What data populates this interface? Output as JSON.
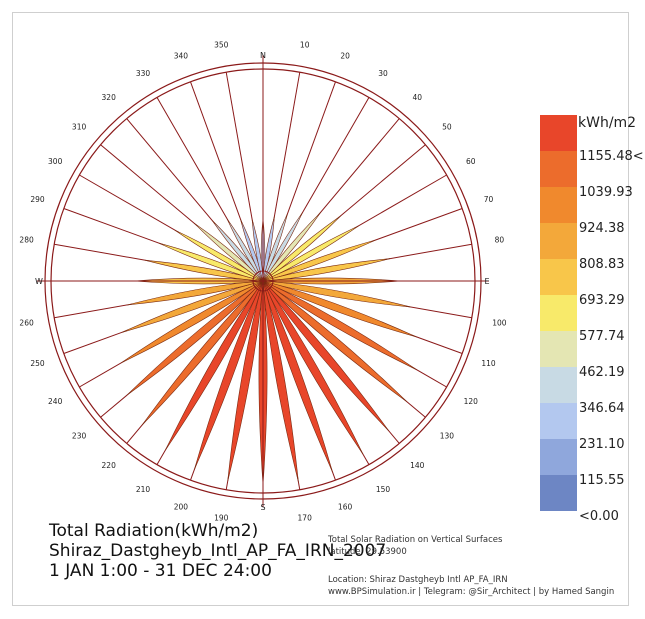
{
  "chart_data": {
    "type": "radial",
    "title": "Total Radiation(kWh/m2)",
    "location": "Shiraz_Dastgheyb_Intl_AP_FA_IRN_2007",
    "period": "1 JAN 1:00 - 31 DEC 24:00",
    "note_title": "Total Solar Radiation on Vertical Surfaces",
    "note_latitude": "latitude: 29.53900",
    "note_location": "Location: Shiraz Dastgheyb Intl AP_FA_IRN",
    "note_credits": "www.BPSimulation.ir | Telegram: @Sir_Architect | by Hamed Sangin",
    "cardinals": {
      "N": "N",
      "E": "E",
      "S": "S",
      "W": "W"
    },
    "angle_labels": [
      "10",
      "20",
      "30",
      "40",
      "50",
      "60",
      "70",
      "80",
      "100",
      "110",
      "120",
      "130",
      "140",
      "150",
      "160",
      "170",
      "190",
      "200",
      "210",
      "220",
      "230",
      "240",
      "250",
      "260",
      "280",
      "290",
      "300",
      "310",
      "320",
      "330",
      "340",
      "350"
    ],
    "directions_deg": [
      0,
      10,
      20,
      30,
      40,
      50,
      60,
      70,
      80,
      90,
      100,
      110,
      120,
      130,
      140,
      150,
      160,
      170,
      180,
      190,
      200,
      210,
      220,
      230,
      240,
      250,
      260,
      270,
      280,
      290,
      300,
      310,
      320,
      330,
      340,
      350
    ],
    "radiation_kwh_m2": [
      320,
      340,
      380,
      430,
      500,
      580,
      640,
      700,
      760,
      820,
      900,
      990,
      1080,
      1150,
      1200,
      1230,
      1250,
      1255,
      1255,
      1250,
      1230,
      1200,
      1150,
      1080,
      990,
      900,
      820,
      760,
      700,
      640,
      580,
      500,
      430,
      380,
      340,
      320
    ],
    "legend": {
      "unit": "kWh/m2",
      "labels": [
        "1155.48<",
        "1039.93",
        "924.38",
        "808.83",
        "693.29",
        "577.74",
        "462.19",
        "346.64",
        "231.10",
        "115.55",
        "<0.00"
      ],
      "colors": [
        "#e8462a",
        "#ec6c2c",
        "#f0892d",
        "#f3a83a",
        "#f8c64a",
        "#f8ea6a",
        "#e4e6b3",
        "#c8dae4",
        "#b3c8ef",
        "#8fa7dc",
        "#6d86c4"
      ]
    }
  }
}
